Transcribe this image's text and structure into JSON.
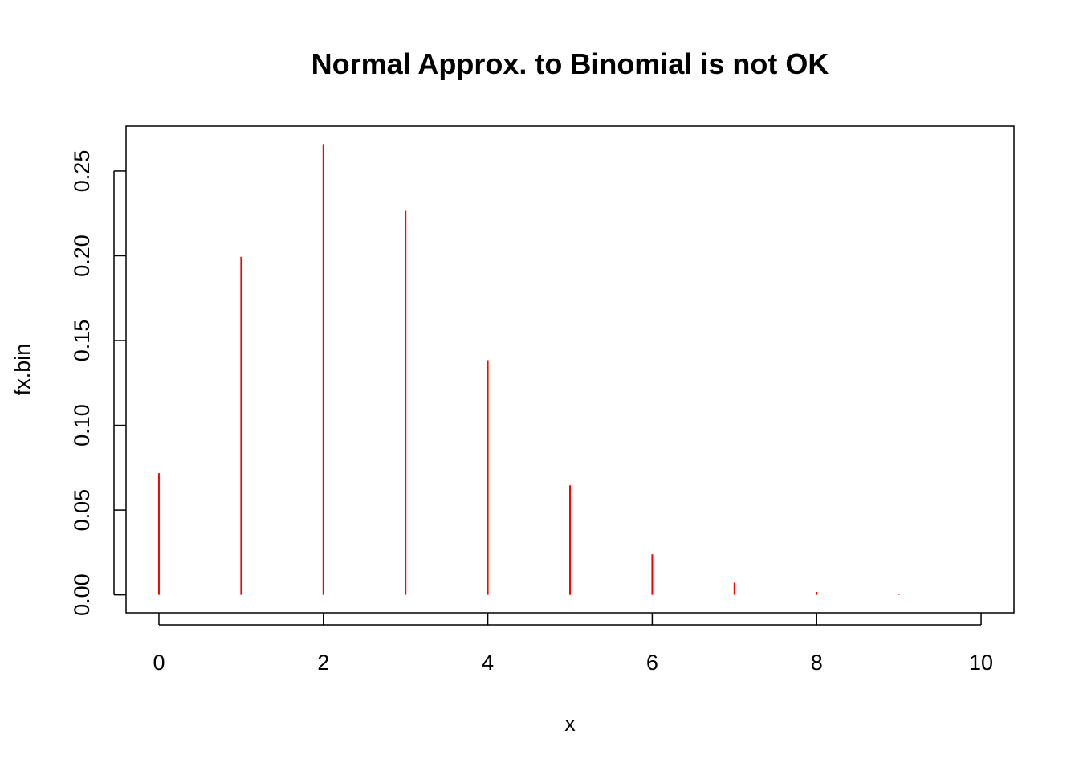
{
  "chart_data": {
    "type": "bar",
    "style": "vertical-lines",
    "title": "Normal Approx. to Binomial is not OK",
    "xlabel": "x",
    "ylabel": "fx.bin",
    "x": [
      0,
      1,
      2,
      3,
      4,
      5,
      6,
      7,
      8,
      9,
      10
    ],
    "values": [
      0.0718,
      0.1994,
      0.2659,
      0.2265,
      0.1384,
      0.0646,
      0.0239,
      0.0072,
      0.0017,
      0.0003,
      0.0
    ],
    "x_ticks": [
      "0",
      "2",
      "4",
      "6",
      "8",
      "10"
    ],
    "y_ticks": [
      "0.00",
      "0.05",
      "0.10",
      "0.15",
      "0.20",
      "0.25"
    ],
    "xlim": [
      -0.4,
      10.4
    ],
    "ylim": [
      -0.0106,
      0.2765
    ],
    "grid": false,
    "legend": "none",
    "colors": {
      "series": "#ff0000",
      "axis": "#000000",
      "background": "#ffffff"
    }
  }
}
